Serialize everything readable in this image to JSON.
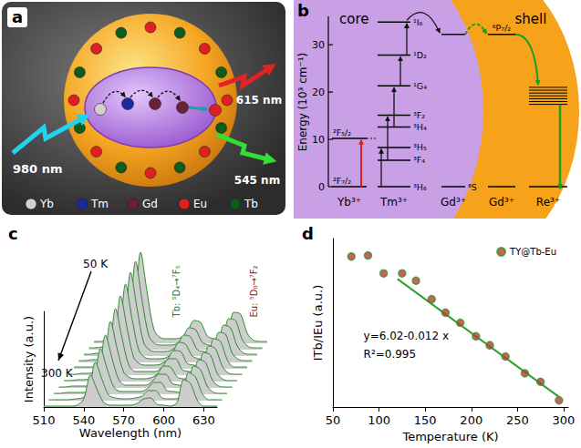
{
  "diagrams": {
    "a": {
      "letter": "a",
      "excitation": {
        "label": "980 nm",
        "color": "#22d3ee"
      },
      "emissions": [
        {
          "label": "615 nm",
          "color": "#e52222"
        },
        {
          "label": "545 nm",
          "color": "#33dd33"
        }
      ],
      "ions": [
        {
          "label": "Yb",
          "color": "#d0d0d0"
        },
        {
          "label": "Tm",
          "color": "#1a2a9e"
        },
        {
          "label": "Gd",
          "color": "#6b1f3a"
        },
        {
          "label": "Eu",
          "color": "#e02020"
        },
        {
          "label": "Tb",
          "color": "#0d5c1a"
        }
      ]
    },
    "b": {
      "letter": "b",
      "regions": [
        "core",
        "shell"
      ],
      "ylabel": "Energy (10³ cm⁻¹)",
      "ylim": [
        0,
        36
      ],
      "yticks": [
        0,
        10,
        20,
        30
      ],
      "ions": [
        {
          "label": "Yb³⁺",
          "levels": [
            {
              "energy": 0,
              "label": "²F₇/₂"
            },
            {
              "energy": 10.2,
              "label": "²F₅/₂"
            }
          ]
        },
        {
          "label": "Tm³⁺",
          "levels": [
            {
              "energy": 0,
              "label": "³H₆"
            },
            {
              "energy": 5.6,
              "label": "³F₄"
            },
            {
              "energy": 8.3,
              "label": "³H₅"
            },
            {
              "energy": 12.6,
              "label": "³H₄"
            },
            {
              "energy": 15.1,
              "label": "³F₂"
            },
            {
              "energy": 21.3,
              "label": "¹G₄"
            },
            {
              "energy": 27.8,
              "label": "¹D₂"
            },
            {
              "energy": 34.8,
              "label": "¹I₆"
            }
          ]
        },
        {
          "label": "Gd³⁺",
          "levels": [
            {
              "energy": 0,
              "label": "⁸S"
            },
            {
              "energy": 32.2
            }
          ]
        },
        {
          "label": "Gd³⁺",
          "levels": [
            {
              "energy": 0
            },
            {
              "energy": 32.2,
              "label": "⁶P₇/₂"
            }
          ]
        },
        {
          "label": "Re³⁺",
          "levels": [
            {
              "energy": 0
            },
            {
              "energy": 17.4
            },
            {
              "energy": 18.0
            },
            {
              "energy": 18.6
            },
            {
              "energy": 19.2
            },
            {
              "energy": 19.8
            },
            {
              "energy": 20.4
            },
            {
              "energy": 21.0
            }
          ]
        }
      ]
    }
  },
  "chart_data": [
    {
      "type": "line",
      "title": "c",
      "xlabel": "Wavelength (nm)",
      "ylabel": "Intensity (a.u.)",
      "xlim": [
        510,
        640
      ],
      "xticks": [
        510,
        540,
        570,
        600,
        630
      ],
      "ylim": [
        0,
        1.05
      ],
      "tick_labels": "x",
      "grid": false,
      "color": "#2e8b2e",
      "annotations": [
        "50 K",
        "300 K",
        "Tb: ⁵D₄→⁷F₅",
        "Eu: ⁵D₀→⁷F₂"
      ],
      "x": [
        510,
        515,
        520,
        525,
        530,
        535,
        540,
        545,
        550,
        555,
        560,
        565,
        570,
        575,
        580,
        585,
        590,
        595,
        600,
        605,
        610,
        615,
        620,
        625,
        630,
        635,
        640
      ],
      "series": [
        {
          "values": [
            0.02,
            0.02,
            0.03,
            0.03,
            0.04,
            0.06,
            0.25,
            1.0,
            0.55,
            0.15,
            0.06,
            0.05,
            0.05,
            0.06,
            0.12,
            0.25,
            0.23,
            0.08,
            0.05,
            0.04,
            0.08,
            0.34,
            0.32,
            0.11,
            0.03,
            0.02,
            0.02
          ]
        },
        {
          "values": [
            0.02,
            0.02,
            0.03,
            0.03,
            0.04,
            0.06,
            0.24,
            0.97,
            0.53,
            0.15,
            0.06,
            0.05,
            0.05,
            0.06,
            0.12,
            0.24,
            0.22,
            0.08,
            0.05,
            0.04,
            0.08,
            0.34,
            0.32,
            0.11,
            0.03,
            0.02,
            0.02
          ]
        },
        {
          "values": [
            0.02,
            0.02,
            0.03,
            0.03,
            0.04,
            0.06,
            0.23,
            0.92,
            0.51,
            0.14,
            0.06,
            0.05,
            0.05,
            0.06,
            0.11,
            0.23,
            0.21,
            0.07,
            0.05,
            0.04,
            0.08,
            0.34,
            0.31,
            0.11,
            0.03,
            0.02,
            0.02
          ]
        },
        {
          "values": [
            0.02,
            0.02,
            0.03,
            0.03,
            0.03,
            0.05,
            0.22,
            0.86,
            0.47,
            0.13,
            0.05,
            0.04,
            0.04,
            0.05,
            0.1,
            0.22,
            0.2,
            0.07,
            0.04,
            0.03,
            0.07,
            0.33,
            0.31,
            0.1,
            0.03,
            0.02,
            0.02
          ]
        },
        {
          "values": [
            0.02,
            0.02,
            0.02,
            0.02,
            0.03,
            0.05,
            0.2,
            0.8,
            0.44,
            0.12,
            0.05,
            0.04,
            0.04,
            0.05,
            0.1,
            0.2,
            0.19,
            0.06,
            0.04,
            0.03,
            0.07,
            0.33,
            0.3,
            0.1,
            0.02,
            0.02,
            0.02
          ]
        },
        {
          "values": [
            0.01,
            0.01,
            0.02,
            0.02,
            0.03,
            0.04,
            0.18,
            0.73,
            0.4,
            0.11,
            0.04,
            0.04,
            0.04,
            0.04,
            0.09,
            0.18,
            0.18,
            0.06,
            0.04,
            0.03,
            0.07,
            0.32,
            0.29,
            0.1,
            0.02,
            0.01,
            0.01
          ]
        },
        {
          "values": [
            0.01,
            0.01,
            0.02,
            0.02,
            0.03,
            0.04,
            0.17,
            0.66,
            0.36,
            0.1,
            0.04,
            0.03,
            0.03,
            0.04,
            0.08,
            0.17,
            0.16,
            0.05,
            0.03,
            0.03,
            0.07,
            0.32,
            0.29,
            0.09,
            0.02,
            0.01,
            0.01
          ]
        },
        {
          "values": [
            0.01,
            0.01,
            0.02,
            0.02,
            0.02,
            0.03,
            0.15,
            0.58,
            0.32,
            0.09,
            0.03,
            0.03,
            0.03,
            0.03,
            0.07,
            0.15,
            0.15,
            0.05,
            0.03,
            0.02,
            0.06,
            0.31,
            0.28,
            0.09,
            0.02,
            0.01,
            0.01
          ]
        },
        {
          "values": [
            0.01,
            0.01,
            0.02,
            0.02,
            0.02,
            0.03,
            0.13,
            0.5,
            0.28,
            0.08,
            0.03,
            0.03,
            0.03,
            0.03,
            0.06,
            0.13,
            0.13,
            0.04,
            0.03,
            0.02,
            0.06,
            0.31,
            0.27,
            0.09,
            0.02,
            0.01,
            0.01
          ]
        },
        {
          "values": [
            0.01,
            0.01,
            0.01,
            0.01,
            0.02,
            0.03,
            0.11,
            0.42,
            0.23,
            0.06,
            0.03,
            0.02,
            0.02,
            0.03,
            0.05,
            0.11,
            0.11,
            0.03,
            0.02,
            0.02,
            0.06,
            0.31,
            0.26,
            0.08,
            0.01,
            0.01,
            0.01
          ]
        },
        {
          "values": [
            0.01,
            0.01,
            0.01,
            0.01,
            0.01,
            0.02,
            0.09,
            0.35,
            0.19,
            0.05,
            0.02,
            0.02,
            0.02,
            0.02,
            0.04,
            0.09,
            0.1,
            0.03,
            0.02,
            0.01,
            0.05,
            0.3,
            0.26,
            0.08,
            0.01,
            0.01,
            0.01
          ]
        }
      ]
    },
    {
      "type": "scatter",
      "title": "d",
      "xlabel": "Temperature (K)",
      "ylabel": "ITb/IEu (a.u.)",
      "xlim": [
        50,
        305
      ],
      "xticks": [
        50,
        100,
        150,
        200,
        250,
        300
      ],
      "ylim": [
        2.3,
        5.3
      ],
      "tick_labels": "x",
      "grid": false,
      "legend": "upper right",
      "annotations": [
        "y=6.02-0.012 x",
        "R²=0.995"
      ],
      "series": [
        {
          "name": "TY@Tb-Eu",
          "type": "scatter",
          "marker": "circle",
          "color": "#c0392b",
          "x": [
            70,
            88,
            105,
            125,
            140,
            157,
            172,
            188,
            205,
            220,
            237,
            258,
            275,
            295
          ],
          "values": [
            4.98,
            5.0,
            4.68,
            4.68,
            4.55,
            4.22,
            3.98,
            3.8,
            3.56,
            3.4,
            3.2,
            2.9,
            2.75,
            2.42
          ]
        },
        {
          "type": "line",
          "line_style": "solid",
          "color": "#2ca02c",
          "x": [
            120,
            295
          ],
          "values": [
            4.58,
            2.48
          ]
        }
      ]
    }
  ]
}
